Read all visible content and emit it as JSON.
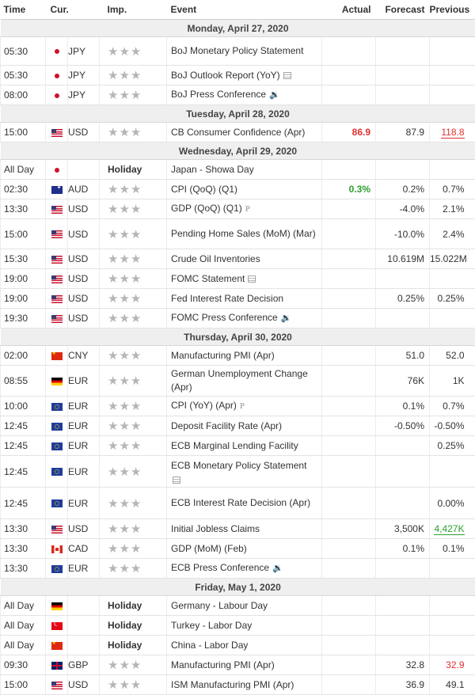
{
  "headers": {
    "time": "Time",
    "cur": "Cur.",
    "imp": "Imp.",
    "event": "Event",
    "actual": "Actual",
    "forecast": "Forecast",
    "previous": "Previous"
  },
  "star_glyph": "★★★",
  "rows": [
    {
      "type": "date",
      "label": "Monday, April 27, 2020"
    },
    {
      "type": "event",
      "time": "05:30",
      "flag": "jp",
      "cur": "JPY",
      "imp": "stars",
      "event": "BoJ Monetary Policy Statement",
      "icon": "",
      "actual": "",
      "forecast": "",
      "previous": "",
      "h": 36
    },
    {
      "type": "event",
      "time": "05:30",
      "flag": "jp",
      "cur": "JPY",
      "imp": "stars",
      "event": "BoJ Outlook Report (YoY)",
      "icon": "doc",
      "actual": "",
      "forecast": "",
      "previous": "",
      "h": 25
    },
    {
      "type": "event",
      "time": "08:00",
      "flag": "jp",
      "cur": "JPY",
      "imp": "stars",
      "event": "BoJ Press Conference",
      "icon": "speaker",
      "actual": "",
      "forecast": "",
      "previous": "",
      "h": 25
    },
    {
      "type": "date",
      "label": "Tuesday, April 28, 2020"
    },
    {
      "type": "event",
      "time": "15:00",
      "flag": "us",
      "cur": "USD",
      "imp": "stars",
      "event": "CB Consumer Confidence (Apr)",
      "icon": "",
      "actual": "86.9",
      "actual_style": "red-bold",
      "forecast": "87.9",
      "previous": "118.8",
      "previous_style": "red-u",
      "h": 25
    },
    {
      "type": "date",
      "label": "Wednesday, April 29, 2020"
    },
    {
      "type": "event",
      "time": "All Day",
      "flag": "jp",
      "cur": "",
      "imp": "holiday",
      "holiday_label": "Holiday",
      "event": "Japan - Showa Day",
      "icon": "",
      "actual": "",
      "forecast": "",
      "previous": "",
      "h": 25
    },
    {
      "type": "event",
      "time": "02:30",
      "flag": "au",
      "cur": "AUD",
      "imp": "stars",
      "event": "CPI (QoQ) (Q1)",
      "icon": "",
      "actual": "0.3%",
      "actual_style": "green",
      "forecast": "0.2%",
      "previous": "0.7%",
      "h": 25
    },
    {
      "type": "event",
      "time": "13:30",
      "flag": "us",
      "cur": "USD",
      "imp": "stars",
      "event": "GDP (QoQ) (Q1)",
      "icon": "p",
      "actual": "",
      "forecast": "-4.0%",
      "previous": "2.1%",
      "h": 25
    },
    {
      "type": "event",
      "time": "15:00",
      "flag": "us",
      "cur": "USD",
      "imp": "stars",
      "event": "Pending Home Sales (MoM) (Mar)",
      "icon": "",
      "actual": "",
      "forecast": "-10.0%",
      "previous": "2.4%",
      "h": 38
    },
    {
      "type": "event",
      "time": "15:30",
      "flag": "us",
      "cur": "USD",
      "imp": "stars",
      "event": "Crude Oil Inventories",
      "icon": "",
      "actual": "",
      "forecast": "10.619M",
      "previous": "15.022M",
      "h": 25
    },
    {
      "type": "event",
      "time": "19:00",
      "flag": "us",
      "cur": "USD",
      "imp": "stars",
      "event": "FOMC Statement",
      "icon": "doc",
      "actual": "",
      "forecast": "",
      "previous": "",
      "h": 25
    },
    {
      "type": "event",
      "time": "19:00",
      "flag": "us",
      "cur": "USD",
      "imp": "stars",
      "event": "Fed Interest Rate Decision",
      "icon": "",
      "actual": "",
      "forecast": "0.25%",
      "previous": "0.25%",
      "h": 25
    },
    {
      "type": "event",
      "time": "19:30",
      "flag": "us",
      "cur": "USD",
      "imp": "stars",
      "event": "FOMC Press Conference",
      "icon": "speaker",
      "actual": "",
      "forecast": "",
      "previous": "",
      "h": 25
    },
    {
      "type": "date",
      "label": "Thursday, April 30, 2020"
    },
    {
      "type": "event",
      "time": "02:00",
      "flag": "cn",
      "cur": "CNY",
      "imp": "stars",
      "event": "Manufacturing PMI (Apr)",
      "icon": "",
      "actual": "",
      "forecast": "51.0",
      "previous": "52.0",
      "h": 25
    },
    {
      "type": "event",
      "time": "08:55",
      "flag": "de",
      "cur": "EUR",
      "imp": "stars",
      "event": "German Unemployment Change (Apr)",
      "icon": "",
      "actual": "",
      "forecast": "76K",
      "previous": "1K",
      "h": 38
    },
    {
      "type": "event",
      "time": "10:00",
      "flag": "eu",
      "cur": "EUR",
      "imp": "stars",
      "event": "CPI (YoY) (Apr)",
      "icon": "p",
      "actual": "",
      "forecast": "0.1%",
      "previous": "0.7%",
      "h": 25
    },
    {
      "type": "event",
      "time": "12:45",
      "flag": "eu",
      "cur": "EUR",
      "imp": "stars",
      "event": "Deposit Facility Rate (Apr)",
      "icon": "",
      "actual": "",
      "forecast": "-0.50%",
      "previous": "-0.50%",
      "h": 25
    },
    {
      "type": "event",
      "time": "12:45",
      "flag": "eu",
      "cur": "EUR",
      "imp": "stars",
      "event": "ECB Marginal Lending Facility",
      "icon": "",
      "actual": "",
      "forecast": "",
      "previous": "0.25%",
      "h": 25
    },
    {
      "type": "event",
      "time": "12:45",
      "flag": "eu",
      "cur": "EUR",
      "imp": "stars",
      "event": "ECB Monetary Policy Statement",
      "icon": "doc-below",
      "actual": "",
      "forecast": "",
      "previous": "",
      "h": 40
    },
    {
      "type": "event",
      "time": "12:45",
      "flag": "eu",
      "cur": "EUR",
      "imp": "stars",
      "event": "ECB Interest Rate Decision (Apr)",
      "icon": "",
      "actual": "",
      "forecast": "",
      "previous": "0.00%",
      "h": 40
    },
    {
      "type": "event",
      "time": "13:30",
      "flag": "us",
      "cur": "USD",
      "imp": "stars",
      "event": "Initial Jobless Claims",
      "icon": "",
      "actual": "",
      "forecast": "3,500K",
      "previous": "4,427K",
      "previous_style": "green-u",
      "h": 25
    },
    {
      "type": "event",
      "time": "13:30",
      "flag": "ca",
      "cur": "CAD",
      "imp": "stars",
      "event": "GDP (MoM) (Feb)",
      "icon": "",
      "actual": "",
      "forecast": "0.1%",
      "previous": "0.1%",
      "h": 25
    },
    {
      "type": "event",
      "time": "13:30",
      "flag": "eu",
      "cur": "EUR",
      "imp": "stars",
      "event": "ECB Press Conference",
      "icon": "speaker",
      "actual": "",
      "forecast": "",
      "previous": "",
      "h": 25
    },
    {
      "type": "date",
      "label": "Friday, May 1, 2020"
    },
    {
      "type": "event",
      "time": "All Day",
      "flag": "de",
      "cur": "",
      "imp": "holiday",
      "holiday_label": "Holiday",
      "event": "Germany - Labour Day",
      "icon": "",
      "actual": "",
      "forecast": "",
      "previous": "",
      "h": 25
    },
    {
      "type": "event",
      "time": "All Day",
      "flag": "tr",
      "cur": "",
      "imp": "holiday",
      "holiday_label": "Holiday",
      "event": "Turkey - Labor Day",
      "icon": "",
      "actual": "",
      "forecast": "",
      "previous": "",
      "h": 25
    },
    {
      "type": "event",
      "time": "All Day",
      "flag": "cn",
      "cur": "",
      "imp": "holiday",
      "holiday_label": "Holiday",
      "event": "China - Labor Day",
      "icon": "",
      "actual": "",
      "forecast": "",
      "previous": "",
      "h": 25
    },
    {
      "type": "event",
      "time": "09:30",
      "flag": "gb",
      "cur": "GBP",
      "imp": "stars",
      "event": "Manufacturing PMI (Apr)",
      "icon": "",
      "actual": "",
      "forecast": "32.8",
      "previous": "32.9",
      "previous_style": "red",
      "h": 25
    },
    {
      "type": "event",
      "time": "15:00",
      "flag": "us",
      "cur": "USD",
      "imp": "stars",
      "event": "ISM Manufacturing PMI (Apr)",
      "icon": "",
      "actual": "",
      "forecast": "36.9",
      "previous": "49.1",
      "h": 25
    }
  ]
}
